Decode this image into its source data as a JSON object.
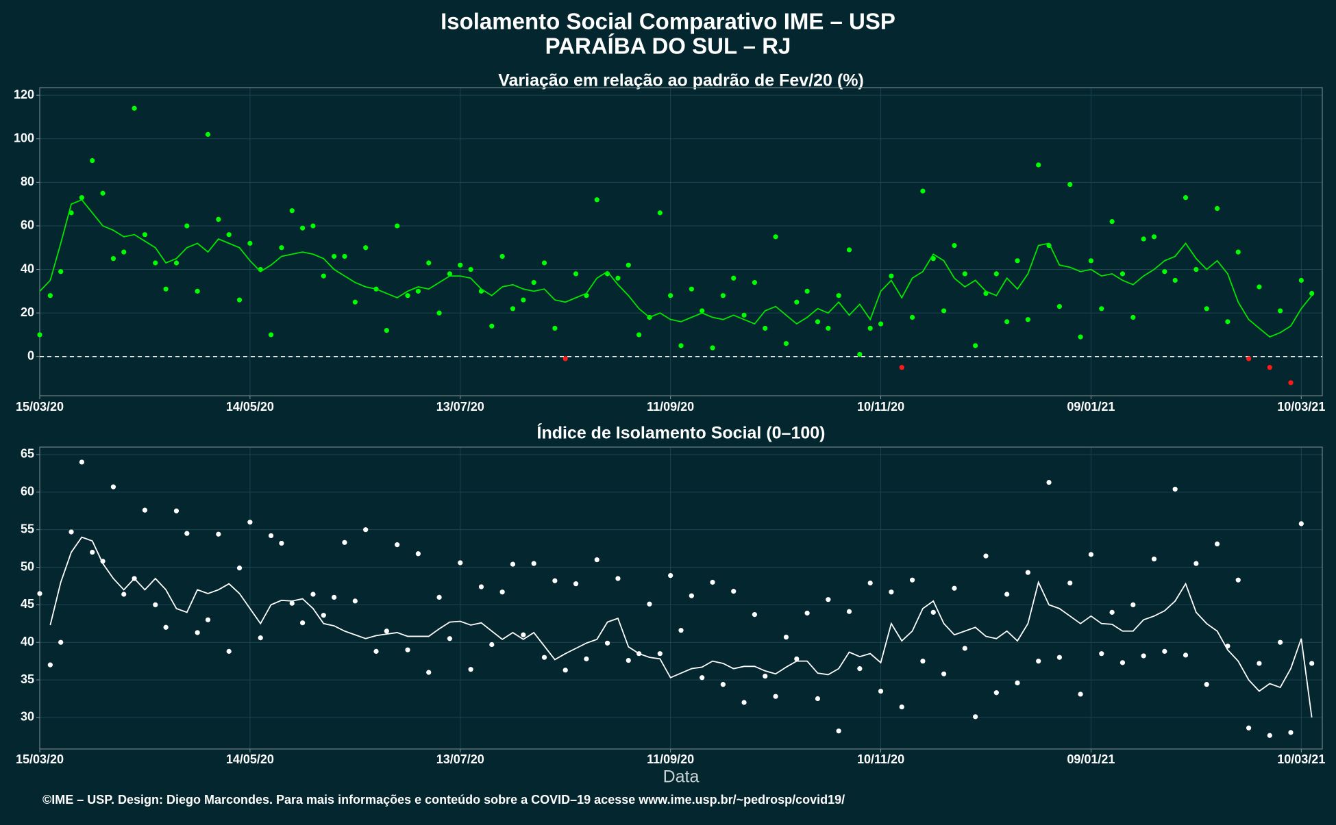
{
  "header": {
    "title": "Isolamento Social Comparativo IME – USP",
    "subtitle": "PARAÍBA DO SUL – RJ"
  },
  "footer": "©IME – USP. Design: Diego Marcondes. Para mais informações e conteúdo sobre a COVID–19 acesse www.ime.usp.br/~pedrosp/covid19/",
  "chart_data": [
    {
      "type": "scatter",
      "title": "Variação em relação ao padrão de Fev/20 (%)",
      "x": [
        0,
        3,
        6,
        9,
        12,
        15,
        18,
        21,
        24,
        27,
        30,
        33,
        36,
        39,
        42,
        45,
        48,
        51,
        54,
        57,
        60,
        63,
        66,
        69,
        72,
        75,
        78,
        81,
        84,
        87,
        90,
        93,
        96,
        99,
        102,
        105,
        108,
        111,
        114,
        117,
        120,
        123,
        126,
        129,
        132,
        135,
        138,
        141,
        144,
        147,
        150,
        153,
        156,
        159,
        162,
        165,
        168,
        171,
        174,
        177,
        180,
        183,
        186,
        189,
        192,
        195,
        198,
        201,
        204,
        207,
        210,
        213,
        216,
        219,
        222,
        225,
        228,
        231,
        234,
        237,
        240,
        243,
        246,
        249,
        252,
        255,
        258,
        261,
        264,
        267,
        270,
        273,
        276,
        279,
        282,
        285,
        288,
        291,
        294,
        297,
        300,
        303,
        306,
        309,
        312,
        315,
        318,
        321,
        324,
        327,
        330,
        333,
        336,
        339,
        342,
        345,
        348,
        351,
        354,
        357,
        360,
        363
      ],
      "series": [
        {
          "kind": "points",
          "color": "#00ff00",
          "negative_color": "#ff1a1a",
          "values": [
            10,
            28,
            39,
            66,
            73,
            90,
            75,
            45,
            48,
            114,
            56,
            43,
            31,
            43,
            60,
            30,
            102,
            63,
            56,
            26,
            52,
            40,
            10,
            50,
            67,
            59,
            60,
            37,
            46,
            46,
            25,
            50,
            31,
            12,
            60,
            28,
            30,
            43,
            20,
            38,
            42,
            40,
            30,
            14,
            46,
            22,
            26,
            34,
            43,
            13,
            -1,
            38,
            28,
            72,
            38,
            36,
            42,
            10,
            18,
            66,
            28,
            5,
            31,
            21,
            4,
            28,
            36,
            19,
            34,
            13,
            55,
            6,
            25,
            30,
            16,
            13,
            28,
            49,
            1,
            13,
            15,
            37,
            -5,
            18,
            76,
            45,
            21,
            51,
            38,
            5,
            29,
            38,
            16,
            44,
            17,
            88,
            51,
            23,
            79,
            9,
            44,
            22,
            62,
            38,
            18,
            54,
            55,
            39,
            35,
            73,
            40,
            22,
            68,
            16,
            48,
            -1,
            32,
            -5,
            21,
            -12,
            35,
            29
          ]
        },
        {
          "kind": "line",
          "color": "#00e600",
          "values": [
            30,
            35,
            52,
            70,
            72,
            66,
            60,
            58,
            55,
            56,
            53,
            50,
            43,
            45,
            50,
            52,
            48,
            54,
            52,
            50,
            44,
            39,
            42,
            46,
            47,
            48,
            47,
            45,
            40,
            37,
            34,
            32,
            31,
            29,
            27,
            30,
            32,
            31,
            34,
            37,
            37,
            36,
            31,
            28,
            32,
            33,
            31,
            30,
            31,
            26,
            25,
            27,
            29,
            36,
            39,
            33,
            28,
            22,
            18,
            20,
            17,
            16,
            18,
            20,
            18,
            17,
            19,
            17,
            15,
            21,
            23,
            19,
            15,
            18,
            22,
            20,
            25,
            19,
            24,
            17,
            30,
            35,
            27,
            36,
            39,
            47,
            44,
            36,
            32,
            35,
            30,
            28,
            36,
            31,
            38,
            51,
            52,
            42,
            41,
            39,
            40,
            37,
            38,
            35,
            33,
            37,
            40,
            44,
            46,
            52,
            45,
            40,
            44,
            38,
            25,
            17,
            13,
            9,
            11,
            14,
            22,
            28
          ]
        }
      ],
      "hline": 0,
      "xlim": [
        0,
        366
      ],
      "xticks": [
        {
          "value": 0,
          "label": "15/03/20"
        },
        {
          "value": 60,
          "label": "14/05/20"
        },
        {
          "value": 120,
          "label": "13/07/20"
        },
        {
          "value": 180,
          "label": "11/09/20"
        },
        {
          "value": 240,
          "label": "10/11/20"
        },
        {
          "value": 300,
          "label": "09/01/21"
        },
        {
          "value": 360,
          "label": "10/03/21"
        }
      ],
      "ylim": [
        -18,
        123.5
      ],
      "yticks": [
        0,
        20,
        40,
        60,
        80,
        100,
        120
      ],
      "grid": true
    },
    {
      "type": "scatter",
      "title": "Índice de Isolamento Social (0–100)",
      "xlabel": "Data",
      "x": [
        0,
        3,
        6,
        9,
        12,
        15,
        18,
        21,
        24,
        27,
        30,
        33,
        36,
        39,
        42,
        45,
        48,
        51,
        54,
        57,
        60,
        63,
        66,
        69,
        72,
        75,
        78,
        81,
        84,
        87,
        90,
        93,
        96,
        99,
        102,
        105,
        108,
        111,
        114,
        117,
        120,
        123,
        126,
        129,
        132,
        135,
        138,
        141,
        144,
        147,
        150,
        153,
        156,
        159,
        162,
        165,
        168,
        171,
        174,
        177,
        180,
        183,
        186,
        189,
        192,
        195,
        198,
        201,
        204,
        207,
        210,
        213,
        216,
        219,
        222,
        225,
        228,
        231,
        234,
        237,
        240,
        243,
        246,
        249,
        252,
        255,
        258,
        261,
        264,
        267,
        270,
        273,
        276,
        279,
        282,
        285,
        288,
        291,
        294,
        297,
        300,
        303,
        306,
        309,
        312,
        315,
        318,
        321,
        324,
        327,
        330,
        333,
        336,
        339,
        342,
        345,
        348,
        351,
        354,
        357,
        360,
        363
      ],
      "series": [
        {
          "kind": "points",
          "color": "#ffffff",
          "values": [
            46.5,
            37,
            40,
            54.7,
            64,
            52,
            50.8,
            60.7,
            46.4,
            48.5,
            57.6,
            45,
            42,
            57.5,
            54.5,
            41.3,
            43,
            54.4,
            38.8,
            49.9,
            56,
            40.6,
            54.2,
            53.2,
            45.2,
            42.6,
            46.4,
            43.6,
            46,
            53.3,
            45.5,
            55,
            38.8,
            41.5,
            53,
            39,
            51.8,
            36,
            46,
            40.5,
            50.6,
            36.4,
            47.4,
            39.7,
            46.7,
            50.4,
            41,
            50.5,
            38,
            48.2,
            36.3,
            47.8,
            37.8,
            51,
            39.9,
            48.5,
            37.6,
            38.5,
            45.1,
            38.5,
            48.9,
            41.6,
            46.2,
            35.3,
            48,
            34.4,
            46.8,
            32,
            43.7,
            35.5,
            32.8,
            40.7,
            37.8,
            43.9,
            32.5,
            45.7,
            28.2,
            44.1,
            36.5,
            47.9,
            33.5,
            46.7,
            31.4,
            48.3,
            37.5,
            44,
            35.8,
            47.2,
            39.2,
            30.1,
            51.5,
            33.3,
            46.4,
            34.6,
            49.3,
            37.5,
            61.3,
            38,
            47.9,
            33.1,
            51.7,
            38.5,
            44,
            37.3,
            45,
            38.2,
            51.1,
            38.8,
            60.4,
            38.3,
            50.5,
            34.4,
            53.1,
            39.5,
            48.3,
            28.6,
            37.2,
            27.6,
            40,
            28,
            55.8,
            37.2
          ]
        },
        {
          "kind": "line",
          "color": "#ffffff",
          "values": [
            null,
            42.3,
            48,
            52,
            54,
            53.5,
            50.5,
            48.5,
            47,
            48.5,
            47,
            48.5,
            47,
            44.5,
            44,
            47,
            46.5,
            47,
            47.8,
            46.5,
            44.5,
            42.5,
            45,
            45.6,
            45.5,
            45.8,
            44.5,
            42.5,
            42.2,
            41.5,
            41,
            40.5,
            40.9,
            41.1,
            41.3,
            40.8,
            40.8,
            40.8,
            41.8,
            42.7,
            42.8,
            42.3,
            42.6,
            41.5,
            40.4,
            41.3,
            40.4,
            41.3,
            39.5,
            37.7,
            38.5,
            39.2,
            39.9,
            40.4,
            42.7,
            43.2,
            39.4,
            38.5,
            38,
            37.8,
            35.3,
            35.9,
            36.5,
            36.7,
            37.5,
            37.2,
            36.5,
            36.8,
            36.8,
            36.2,
            35.8,
            36.7,
            37.5,
            37.5,
            35.9,
            35.7,
            36.5,
            38.7,
            38.1,
            38.5,
            37.3,
            42.5,
            40.2,
            41.5,
            44.5,
            45.5,
            42.5,
            41,
            41.5,
            42,
            40.8,
            40.5,
            41.5,
            40.2,
            42.5,
            48,
            45,
            44.5,
            43.5,
            42.5,
            43.5,
            42.5,
            42.4,
            41.5,
            41.5,
            43,
            43.5,
            44.2,
            45.5,
            47.8,
            44,
            42.5,
            41.5,
            39,
            37.5,
            35,
            33.5,
            34.5,
            34,
            36.5,
            40.5,
            30
          ]
        }
      ],
      "xlim": [
        0,
        366
      ],
      "xticks": [
        {
          "value": 0,
          "label": "15/03/20"
        },
        {
          "value": 60,
          "label": "14/05/20"
        },
        {
          "value": 120,
          "label": "13/07/20"
        },
        {
          "value": 180,
          "label": "11/09/20"
        },
        {
          "value": 240,
          "label": "10/11/20"
        },
        {
          "value": 300,
          "label": "09/01/21"
        },
        {
          "value": 360,
          "label": "10/03/21"
        }
      ],
      "ylim": [
        25.8,
        66
      ],
      "yticks": [
        30,
        35,
        40,
        45,
        50,
        55,
        60,
        65
      ],
      "grid": true
    }
  ]
}
